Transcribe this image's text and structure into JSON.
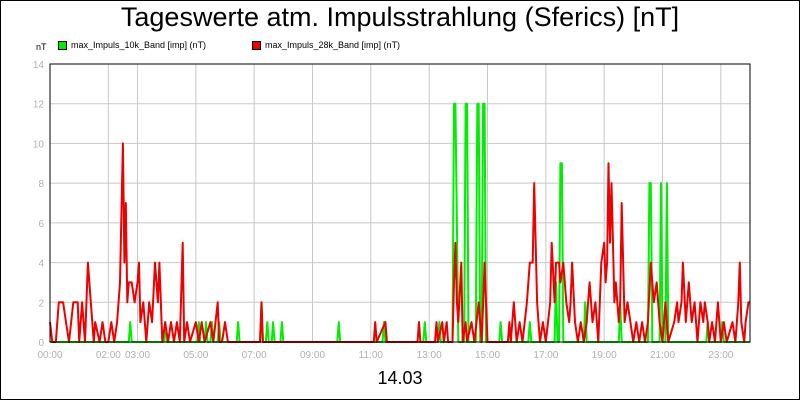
{
  "chart_data": {
    "type": "line",
    "title": "Tageswerte atm. Impulsstrahlung (Sferics) [nT]",
    "ylabel": "nT",
    "xlabel": "14.03",
    "x_range_hours": [
      0,
      24
    ],
    "ylim": [
      0,
      14
    ],
    "y_ticks": [
      "0",
      "2",
      "4",
      "6",
      "8",
      "10",
      "12",
      "14"
    ],
    "x_ticks": [
      {
        "hour": 0,
        "label": "00:00"
      },
      {
        "hour": 2,
        "label": "02:00"
      },
      {
        "hour": 3,
        "label": "03:00"
      },
      {
        "hour": 5,
        "label": "05:00"
      },
      {
        "hour": 7,
        "label": "07:00"
      },
      {
        "hour": 9,
        "label": "09:00"
      },
      {
        "hour": 11,
        "label": "11:00"
      },
      {
        "hour": 13,
        "label": "13:00"
      },
      {
        "hour": 15,
        "label": "15:00"
      },
      {
        "hour": 17,
        "label": "17:00"
      },
      {
        "hour": 19,
        "label": "19:00"
      },
      {
        "hour": 21,
        "label": "21:00"
      },
      {
        "hour": 23,
        "label": "23:00"
      }
    ],
    "grid": true,
    "legend_position": "top-left",
    "series": [
      {
        "name": "max_Impuls_10k_Band [imp] (nT)",
        "color": "#00ee00",
        "points": [
          [
            0,
            0
          ],
          [
            2.7,
            0
          ],
          [
            2.75,
            1
          ],
          [
            2.8,
            0
          ],
          [
            3.9,
            0
          ],
          [
            3.95,
            1
          ],
          [
            4.0,
            0
          ],
          [
            5.05,
            0
          ],
          [
            5.1,
            1
          ],
          [
            5.15,
            0
          ],
          [
            5.3,
            0
          ],
          [
            5.35,
            1
          ],
          [
            5.4,
            0
          ],
          [
            5.5,
            0
          ],
          [
            5.55,
            1
          ],
          [
            5.6,
            0
          ],
          [
            5.75,
            0
          ],
          [
            5.8,
            1
          ],
          [
            5.85,
            0
          ],
          [
            6.4,
            0
          ],
          [
            6.45,
            1
          ],
          [
            6.5,
            0
          ],
          [
            7.2,
            0
          ],
          [
            7.25,
            2
          ],
          [
            7.3,
            0
          ],
          [
            7.4,
            0
          ],
          [
            7.45,
            1
          ],
          [
            7.5,
            0
          ],
          [
            7.6,
            0
          ],
          [
            7.65,
            1
          ],
          [
            7.7,
            0
          ],
          [
            7.9,
            0
          ],
          [
            7.95,
            1
          ],
          [
            8.0,
            0
          ],
          [
            9.85,
            0
          ],
          [
            9.9,
            1
          ],
          [
            9.95,
            0
          ],
          [
            11.4,
            0
          ],
          [
            11.45,
            1
          ],
          [
            11.5,
            0
          ],
          [
            12.8,
            0
          ],
          [
            12.85,
            1
          ],
          [
            12.9,
            0
          ],
          [
            13.3,
            0
          ],
          [
            13.35,
            1
          ],
          [
            13.4,
            0
          ],
          [
            13.8,
            0
          ],
          [
            13.85,
            12
          ],
          [
            13.9,
            12
          ],
          [
            13.95,
            6
          ],
          [
            14.0,
            0
          ],
          [
            14.2,
            0
          ],
          [
            14.25,
            12
          ],
          [
            14.3,
            12
          ],
          [
            14.35,
            0
          ],
          [
            14.6,
            0
          ],
          [
            14.65,
            12
          ],
          [
            14.7,
            12
          ],
          [
            14.75,
            0
          ],
          [
            14.8,
            0
          ],
          [
            14.85,
            12
          ],
          [
            14.9,
            12
          ],
          [
            14.95,
            0
          ],
          [
            15.4,
            0
          ],
          [
            15.45,
            1
          ],
          [
            15.5,
            0
          ],
          [
            16.4,
            0
          ],
          [
            16.45,
            1
          ],
          [
            16.5,
            0
          ],
          [
            17.3,
            0
          ],
          [
            17.35,
            3
          ],
          [
            17.4,
            0
          ],
          [
            17.45,
            0
          ],
          [
            17.5,
            9
          ],
          [
            17.55,
            9
          ],
          [
            17.6,
            0
          ],
          [
            18.3,
            0
          ],
          [
            18.35,
            2
          ],
          [
            18.4,
            0
          ],
          [
            19.5,
            0
          ],
          [
            19.55,
            2
          ],
          [
            19.6,
            0
          ],
          [
            20.5,
            0
          ],
          [
            20.55,
            8
          ],
          [
            20.6,
            8
          ],
          [
            20.65,
            0
          ],
          [
            20.9,
            0
          ],
          [
            20.95,
            8
          ],
          [
            21.0,
            0
          ],
          [
            21.1,
            0
          ],
          [
            21.15,
            8
          ],
          [
            21.2,
            0
          ],
          [
            22.5,
            0
          ],
          [
            22.55,
            1
          ],
          [
            22.6,
            0
          ],
          [
            23.0,
            0
          ],
          [
            23.05,
            1
          ],
          [
            23.1,
            0
          ],
          [
            24,
            0
          ]
        ]
      },
      {
        "name": "max_Impuls_28k_Band [imp] (nT)",
        "color": "#ee0000",
        "points": [
          [
            0,
            1
          ],
          [
            0.08,
            0
          ],
          [
            0.2,
            0
          ],
          [
            0.3,
            2
          ],
          [
            0.45,
            2
          ],
          [
            0.55,
            1
          ],
          [
            0.65,
            0
          ],
          [
            0.8,
            2
          ],
          [
            0.95,
            2
          ],
          [
            1.0,
            0
          ],
          [
            1.1,
            2
          ],
          [
            1.2,
            0
          ],
          [
            1.3,
            4
          ],
          [
            1.4,
            2
          ],
          [
            1.5,
            0
          ],
          [
            1.55,
            1
          ],
          [
            1.7,
            0
          ],
          [
            1.8,
            1
          ],
          [
            1.9,
            0
          ],
          [
            2.0,
            0
          ],
          [
            2.1,
            1
          ],
          [
            2.2,
            0
          ],
          [
            2.3,
            1
          ],
          [
            2.4,
            3
          ],
          [
            2.5,
            10
          ],
          [
            2.55,
            4
          ],
          [
            2.6,
            7
          ],
          [
            2.65,
            2
          ],
          [
            2.7,
            3
          ],
          [
            2.8,
            3
          ],
          [
            2.9,
            2
          ],
          [
            3.0,
            3
          ],
          [
            3.05,
            4
          ],
          [
            3.1,
            1
          ],
          [
            3.2,
            2
          ],
          [
            3.3,
            0
          ],
          [
            3.4,
            2
          ],
          [
            3.5,
            1
          ],
          [
            3.6,
            4
          ],
          [
            3.7,
            2
          ],
          [
            3.75,
            4
          ],
          [
            3.85,
            0
          ],
          [
            3.95,
            1
          ],
          [
            4.05,
            0
          ],
          [
            4.15,
            1
          ],
          [
            4.25,
            0
          ],
          [
            4.35,
            1
          ],
          [
            4.45,
            0
          ],
          [
            4.55,
            5
          ],
          [
            4.6,
            0
          ],
          [
            4.7,
            1
          ],
          [
            4.8,
            0
          ],
          [
            5.0,
            1
          ],
          [
            5.1,
            0
          ],
          [
            5.2,
            1
          ],
          [
            5.3,
            0
          ],
          [
            5.5,
            1
          ],
          [
            5.6,
            0
          ],
          [
            5.75,
            2
          ],
          [
            5.8,
            0
          ],
          [
            5.9,
            0
          ],
          [
            6.0,
            1
          ],
          [
            6.1,
            0
          ],
          [
            7.2,
            0
          ],
          [
            7.25,
            2
          ],
          [
            7.3,
            0
          ],
          [
            11.1,
            0
          ],
          [
            11.15,
            1
          ],
          [
            11.2,
            0
          ],
          [
            11.5,
            1
          ],
          [
            11.55,
            0
          ],
          [
            12.6,
            0
          ],
          [
            12.65,
            1
          ],
          [
            12.7,
            0
          ],
          [
            13.2,
            0
          ],
          [
            13.25,
            1
          ],
          [
            13.3,
            0
          ],
          [
            13.45,
            1
          ],
          [
            13.5,
            0
          ],
          [
            13.6,
            1
          ],
          [
            13.65,
            0
          ],
          [
            13.8,
            0
          ],
          [
            13.85,
            3
          ],
          [
            13.9,
            5
          ],
          [
            13.95,
            2
          ],
          [
            14.0,
            1
          ],
          [
            14.1,
            4
          ],
          [
            14.15,
            0
          ],
          [
            14.25,
            1
          ],
          [
            14.3,
            0
          ],
          [
            14.45,
            1
          ],
          [
            14.55,
            0
          ],
          [
            14.7,
            2
          ],
          [
            14.8,
            0
          ],
          [
            14.9,
            4
          ],
          [
            15.0,
            0
          ],
          [
            15.7,
            0
          ],
          [
            15.75,
            1
          ],
          [
            15.8,
            0
          ],
          [
            15.9,
            2
          ],
          [
            16.0,
            0
          ],
          [
            16.1,
            1
          ],
          [
            16.2,
            0
          ],
          [
            16.35,
            2
          ],
          [
            16.45,
            4
          ],
          [
            16.55,
            4
          ],
          [
            16.6,
            8
          ],
          [
            16.7,
            2
          ],
          [
            16.75,
            1
          ],
          [
            16.8,
            0
          ],
          [
            16.9,
            1
          ],
          [
            17.0,
            0
          ],
          [
            17.15,
            2
          ],
          [
            17.2,
            5
          ],
          [
            17.3,
            2
          ],
          [
            17.35,
            4
          ],
          [
            17.45,
            4
          ],
          [
            17.5,
            3
          ],
          [
            17.6,
            4
          ],
          [
            17.7,
            2
          ],
          [
            17.8,
            1
          ],
          [
            17.85,
            2
          ],
          [
            17.9,
            4
          ],
          [
            18.0,
            1
          ],
          [
            18.1,
            0
          ],
          [
            18.2,
            1
          ],
          [
            18.3,
            0
          ],
          [
            18.4,
            1
          ],
          [
            18.45,
            2
          ],
          [
            18.5,
            3
          ],
          [
            18.6,
            1
          ],
          [
            18.7,
            2
          ],
          [
            18.8,
            0
          ],
          [
            18.9,
            4
          ],
          [
            19.0,
            5
          ],
          [
            19.05,
            3
          ],
          [
            19.1,
            4
          ],
          [
            19.15,
            9
          ],
          [
            19.2,
            5
          ],
          [
            19.25,
            8
          ],
          [
            19.35,
            2
          ],
          [
            19.4,
            3
          ],
          [
            19.5,
            1
          ],
          [
            19.55,
            2
          ],
          [
            19.6,
            7
          ],
          [
            19.7,
            1
          ],
          [
            19.8,
            2
          ],
          [
            19.9,
            1
          ],
          [
            20.0,
            0
          ],
          [
            20.1,
            1
          ],
          [
            20.2,
            0
          ],
          [
            20.3,
            1
          ],
          [
            20.4,
            0
          ],
          [
            20.5,
            1
          ],
          [
            20.6,
            4
          ],
          [
            20.7,
            2
          ],
          [
            20.8,
            3
          ],
          [
            20.9,
            1
          ],
          [
            21.0,
            0
          ],
          [
            21.1,
            2
          ],
          [
            21.2,
            0
          ],
          [
            21.4,
            1
          ],
          [
            21.5,
            2
          ],
          [
            21.55,
            1
          ],
          [
            21.65,
            2
          ],
          [
            21.7,
            4
          ],
          [
            21.8,
            1
          ],
          [
            21.9,
            3
          ],
          [
            22.0,
            1
          ],
          [
            22.1,
            2
          ],
          [
            22.2,
            0
          ],
          [
            22.3,
            2
          ],
          [
            22.4,
            1
          ],
          [
            22.45,
            2
          ],
          [
            22.55,
            1
          ],
          [
            22.6,
            0
          ],
          [
            22.7,
            1
          ],
          [
            22.8,
            0
          ],
          [
            22.9,
            2
          ],
          [
            23.0,
            0
          ],
          [
            23.1,
            1
          ],
          [
            23.2,
            0
          ],
          [
            23.4,
            1
          ],
          [
            23.5,
            0
          ],
          [
            23.6,
            2
          ],
          [
            23.65,
            4
          ],
          [
            23.7,
            1
          ],
          [
            23.8,
            0
          ],
          [
            23.85,
            1
          ],
          [
            23.95,
            2
          ],
          [
            24,
            2
          ]
        ]
      }
    ]
  }
}
